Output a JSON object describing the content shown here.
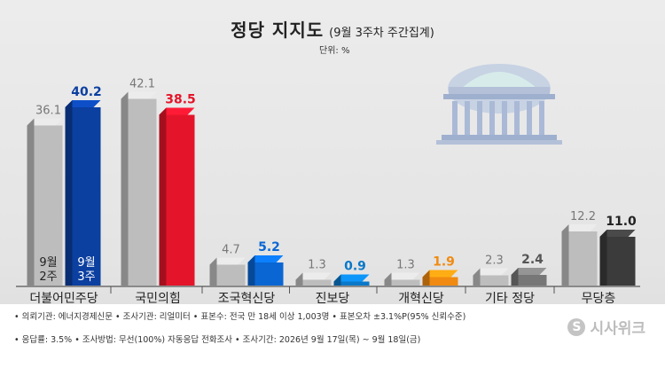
{
  "header": {
    "title": "정당 지지도",
    "subtitle": "(9월 3주차 주간집계)",
    "unit": "단위: %"
  },
  "chart_data": {
    "type": "bar",
    "title": "정당 지지도",
    "categories": [
      "더불어민주당",
      "국민의힘",
      "조국혁신당",
      "진보당",
      "개혁신당",
      "기타 정당",
      "무당층"
    ],
    "series": [
      {
        "name": "9월 2주",
        "values": [
          36.1,
          42.1,
          4.7,
          1.3,
          1.3,
          2.3,
          12.2
        ]
      },
      {
        "name": "9월 3주",
        "values": [
          40.2,
          38.5,
          5.2,
          0.9,
          1.9,
          2.4,
          11.0
        ]
      }
    ],
    "value_labels_prev": [
      "36.1",
      "42.1",
      "4.7",
      "1.3",
      "1.3",
      "2.3",
      "12.2"
    ],
    "value_labels_curr": [
      "40.2",
      "38.5",
      "5.2",
      "0.9",
      "1.9",
      "2.4",
      "11.0"
    ],
    "colors": {
      "previous": "#bdbdbd",
      "current": [
        "#0b3fa0",
        "#e4152a",
        "#0a66d3",
        "#0a78c8",
        "#f08a10",
        "#777777",
        "#3b3b3b"
      ],
      "current_label": [
        "#0b3fa0",
        "#e4152a",
        "#0a66d3",
        "#0a78c8",
        "#f08a10",
        "#555555",
        "#222222"
      ]
    },
    "ylim": [
      0,
      50
    ],
    "legend_in_bars": [
      "9월\n2주",
      "9월\n3주"
    ]
  },
  "footer": {
    "line1": "• 의뢰기관: 에너지경제신문 • 조사기관: 리얼미터 • 표본수: 전국 만 18세 이상 1,003명 • 표본오차 ±3.1%P(95% 신뢰수준)",
    "line2": "• 응답률: 3.5% • 조사방법: 무선(100%) 자동응답 전화조사 • 조사기간: 2026년 9월 17일(목) ~ 9월 18일(금)"
  },
  "watermark": {
    "text": "시사위크",
    "logo": "S"
  }
}
